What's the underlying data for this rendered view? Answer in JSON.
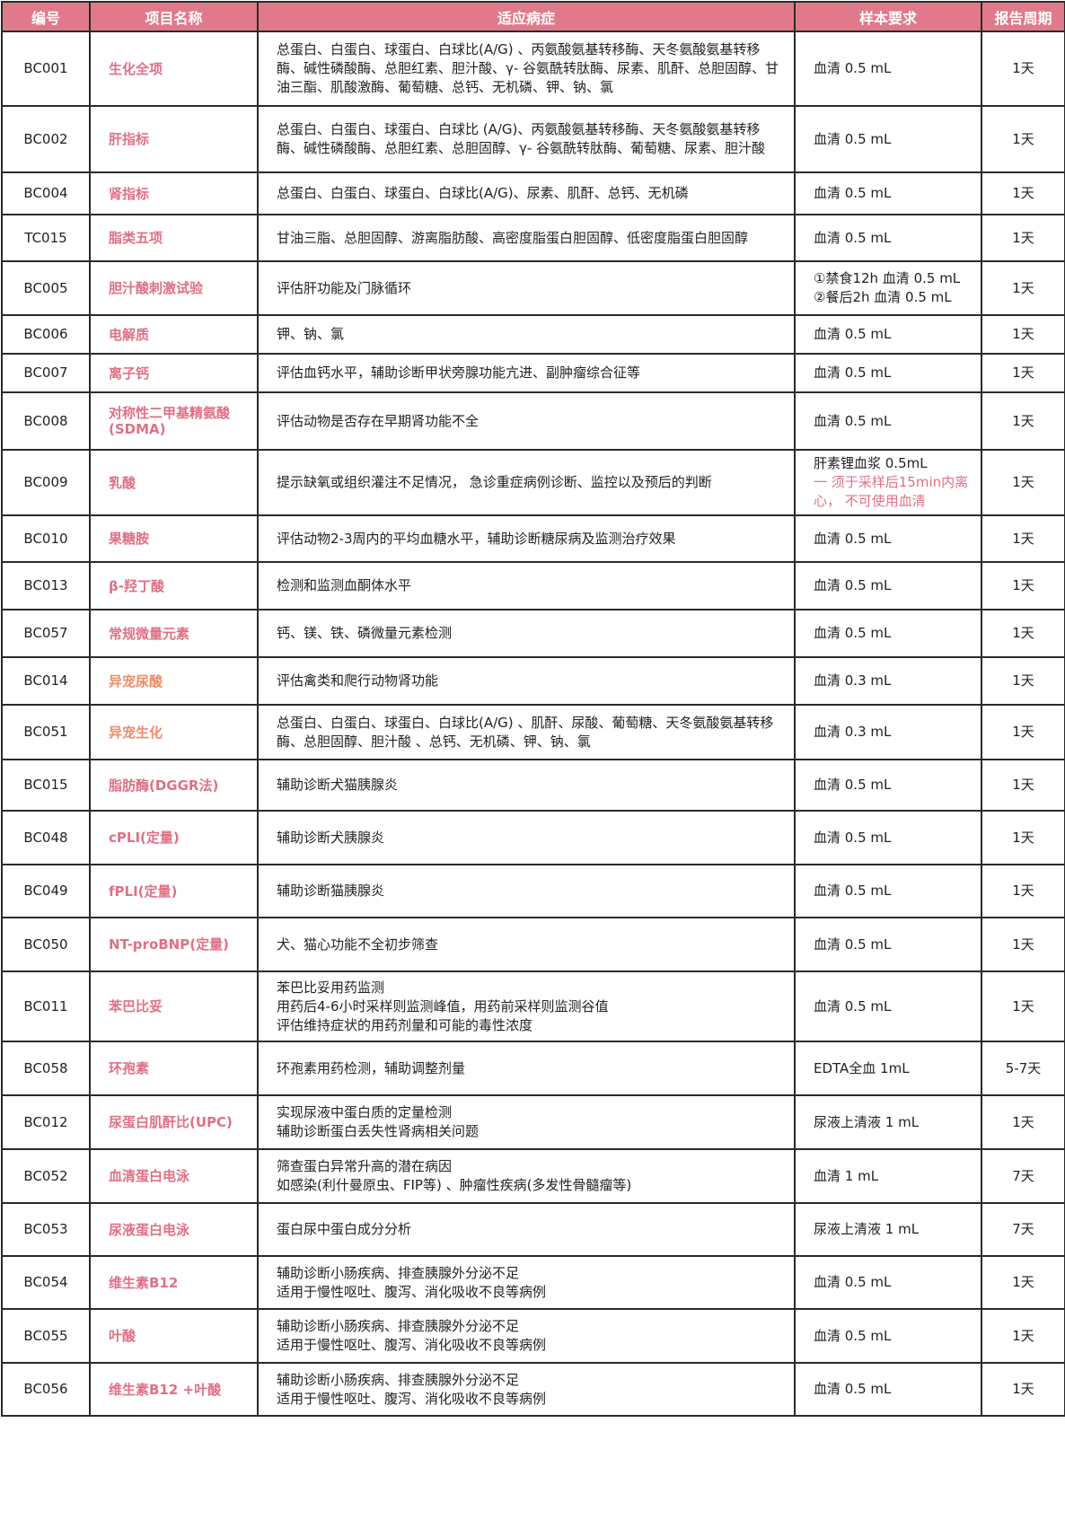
{
  "headers": [
    "编号",
    "项目名称",
    "适应病症",
    "样本要求",
    "报告周期"
  ],
  "rows": [
    {
      "code": "BC001",
      "name": "生化全项",
      "ind": [
        "总蛋白、白蛋白、球蛋白、白球比(A/G) 、丙氨酸氨基转移酶、天冬氨酸氨基转移酶、碱性磷酸酶、总胆红素、胆汁酸、γ- 谷氨酰转肽酶、尿素、肌酐、总胆固醇、甘油三酯、肌酸激酶、葡萄糖、总钙、无机磷、钾、钠、氯"
      ],
      "sample": [
        "血清 0.5 mL"
      ],
      "period": "1天"
    },
    {
      "code": "BC002",
      "name": "肝指标",
      "ind": [
        "总蛋白、白蛋白、球蛋白、白球比 (A/G)、丙氨酸氨基转移酶、天冬氨酸氨基转移酶、碱性磷酸酶、总胆红素、总胆固醇、γ- 谷氨酰转肽酶、葡萄糖、尿素、胆汁酸"
      ],
      "sample": [
        "血清 0.5 mL"
      ],
      "period": "1天"
    },
    {
      "code": "BC004",
      "name": "肾指标",
      "ind": [
        "总蛋白、白蛋白、球蛋白、白球比(A/G)、尿素、肌酐、总钙、无机磷"
      ],
      "sample": [
        "血清 0.5 mL"
      ],
      "period": "1天"
    },
    {
      "code": "TC015",
      "name": "脂类五项",
      "ind": [
        "甘油三脂、总胆固醇、游离脂肪酸、高密度脂蛋白胆固醇、低密度脂蛋白胆固醇"
      ],
      "sample": [
        "血清 0.5 mL"
      ],
      "period": "1天"
    },
    {
      "code": "BC005",
      "name": "胆汁酸刺激试验",
      "ind": [
        "评估肝功能及门脉循环"
      ],
      "sample": [
        "①禁食12h  血清 0.5 mL",
        "②餐后2h   血清 0.5 mL"
      ],
      "period": "1天"
    },
    {
      "code": "BC006",
      "name": "电解质",
      "ind": [
        "钾、钠、氯"
      ],
      "sample": [
        "血清 0.5 mL"
      ],
      "period": "1天"
    },
    {
      "code": "BC007",
      "name": "离子钙",
      "ind": [
        "评估血钙水平，辅助诊断甲状旁腺功能亢进、副肿瘤综合征等"
      ],
      "sample": [
        "血清 0.5 mL"
      ],
      "period": "1天"
    },
    {
      "code": "BC008",
      "name": "对称性二甲基精氨酸 (SDMA)",
      "ind": [
        "评估动物是否存在早期肾功能不全"
      ],
      "sample": [
        "血清 0.5 mL"
      ],
      "period": "1天"
    },
    {
      "code": "BC009",
      "name": "乳酸",
      "ind": [
        "提示缺氧或组织灌注不足情况， 急诊重症病例诊断、监控以及预后的判断"
      ],
      "sample": [
        "肝素锂血浆 0.5mL"
      ],
      "sample_note": "一 须于采样后15min内离心， 不可使用血清",
      "period": "1天"
    },
    {
      "code": "BC010",
      "name": "果糖胺",
      "ind": [
        "评估动物2-3周内的平均血糖水平，辅助诊断糖尿病及监测治疗效果"
      ],
      "sample": [
        "血清 0.5 mL"
      ],
      "period": "1天"
    },
    {
      "code": "BC013",
      "name": "β-羟丁酸",
      "ind": [
        "检测和监测血酮体水平"
      ],
      "sample": [
        "血清 0.5 mL"
      ],
      "period": "1天"
    },
    {
      "code": "BC057",
      "name": "常规微量元素",
      "ind": [
        "钙、镁、铁、磷微量元素检测"
      ],
      "sample": [
        "血清 0.5 mL"
      ],
      "period": "1天"
    },
    {
      "code": "BC014",
      "name": "异宠尿酸",
      "ind": [
        "评估禽类和爬行动物肾功能"
      ],
      "sample": [
        "血清 0.3 mL"
      ],
      "period": "1天"
    },
    {
      "code": "BC051",
      "name": "异宠生化",
      "ind": [
        "总蛋白、白蛋白、球蛋白、白球比(A/G) 、肌酐、尿酸、葡萄糖、天冬氨酸氨基转移酶、总胆固醇、胆汁酸 、总钙、无机磷、钾、钠、氯"
      ],
      "sample": [
        "血清 0.3 mL"
      ],
      "period": "1天"
    },
    {
      "code": "BC015",
      "name": "脂肪酶(DGGR法)",
      "ind": [
        "辅助诊断犬猫胰腺炎"
      ],
      "sample": [
        "血清 0.5 mL"
      ],
      "period": "1天"
    },
    {
      "code": "BC048",
      "name": "cPLI(定量)",
      "ind": [
        "辅助诊断犬胰腺炎"
      ],
      "sample": [
        "血清 0.5 mL"
      ],
      "period": "1天"
    },
    {
      "code": "BC049",
      "name": "fPLI(定量)",
      "ind": [
        "辅助诊断猫胰腺炎"
      ],
      "sample": [
        "血清 0.5 mL"
      ],
      "period": "1天"
    },
    {
      "code": "BC050",
      "name": "NT-proBNP(定量)",
      "ind": [
        "犬、猫心功能不全初步筛查"
      ],
      "sample": [
        "血清 0.5 mL"
      ],
      "period": "1天"
    },
    {
      "code": "BC011",
      "name": "苯巴比妥",
      "ind": [
        "苯巴比妥用药监测",
        "用药后4-6小时采样则监测峰值，用药前采样则监测谷值",
        "评估维持症状的用药剂量和可能的毒性浓度"
      ],
      "sample": [
        "血清 0.5 mL"
      ],
      "period": "1天"
    },
    {
      "code": "BC058",
      "name": "环孢素",
      "ind": [
        "环孢素用药检测，辅助调整剂量"
      ],
      "sample": [
        "EDTA全血 1mL"
      ],
      "period": "5-7天"
    },
    {
      "code": "BC012",
      "name": "尿蛋白肌酐比(UPC)",
      "ind": [
        "实现尿液中蛋白质的定量检测",
        "辅助诊断蛋白丢失性肾病相关问题"
      ],
      "sample": [
        "尿液上清液 1 mL"
      ],
      "period": "1天"
    },
    {
      "code": "BC052",
      "name": "血清蛋白电泳",
      "ind": [
        "筛查蛋白异常升高的潜在病因",
        "如感染(利什曼原虫、FIP等) 、肿瘤性疾病(多发性骨髓瘤等)"
      ],
      "sample": [
        "血清 1 mL"
      ],
      "period": "7天"
    },
    {
      "code": "BC053",
      "name": "尿液蛋白电泳",
      "ind": [
        "蛋白尿中蛋白成分分析"
      ],
      "sample": [
        "尿液上清液 1 mL"
      ],
      "period": "7天"
    },
    {
      "code": "BC054",
      "name": "维生素B12",
      "ind": [
        "辅助诊断小肠疾病、排查胰腺外分泌不足",
        "适用于慢性呕吐、腹泻、消化吸收不良等病例"
      ],
      "sample": [
        "血清 0.5 mL"
      ],
      "period": "1天"
    },
    {
      "code": "BC055",
      "name": "叶酸",
      "ind": [
        "辅助诊断小肠疾病、排查胰腺外分泌不足",
        "适用于慢性呕吐、腹泻、消化吸收不良等病例"
      ],
      "sample": [
        "血清 0.5 mL"
      ],
      "period": "1天"
    },
    {
      "code": "BC056",
      "name": "维生素B12 +叶酸",
      "ind": [
        "辅助诊断小肠疾病、排查胰腺外分泌不足",
        "适用于慢性呕吐、腹泻、消化吸收不良等病例"
      ],
      "sample": [
        "血清 0.5 mL"
      ],
      "period": "1天"
    }
  ],
  "colors": {
    "header_bg": "#e07a8a",
    "name_pink": "#e07085",
    "name_orange": "#ee8c66"
  }
}
